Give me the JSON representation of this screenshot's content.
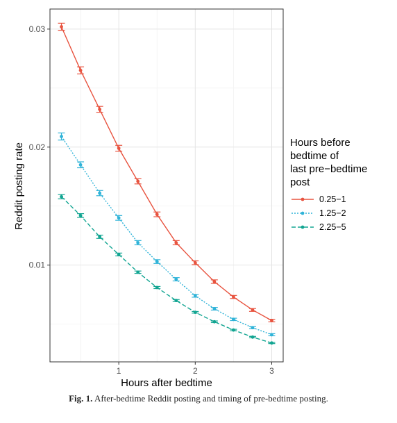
{
  "caption": {
    "label": "Fig. 1.",
    "text": "After-bedtime Reddit posting and timing of pre-bedtime posting."
  },
  "chart_data": {
    "type": "line",
    "title": "",
    "xlabel": "Hours after bedtime",
    "ylabel": "Reddit posting rate",
    "xlim": [
      0.1,
      3.15
    ],
    "ylim": [
      0.0018,
      0.0317
    ],
    "x_ticks": [
      1,
      2,
      3
    ],
    "x_tick_labels": [
      "1",
      "2",
      "3"
    ],
    "y_ticks": [
      0.01,
      0.02,
      0.03
    ],
    "y_tick_labels": [
      "0.01",
      "0.02",
      "0.03"
    ],
    "grid": true,
    "legend": {
      "title_lines": [
        "Hours before",
        "bedtime of",
        "last pre−bedtime",
        "post"
      ],
      "placement": "right"
    },
    "x": [
      0.25,
      0.5,
      0.75,
      1.0,
      1.25,
      1.5,
      1.75,
      2.0,
      2.25,
      2.5,
      2.75,
      3.0
    ],
    "series": [
      {
        "name": "0.25−1",
        "color": "#e8533f",
        "dash": "solid",
        "values": [
          0.0302,
          0.0265,
          0.0232,
          0.0199,
          0.0171,
          0.0143,
          0.0119,
          0.0102,
          0.0086,
          0.0073,
          0.0062,
          0.0053
        ],
        "err": [
          0.0003,
          0.0003,
          0.00025,
          0.00025,
          0.00022,
          0.0002,
          0.00018,
          0.00016,
          0.00015,
          0.00013,
          0.00012,
          0.00011
        ]
      },
      {
        "name": "1.25−2",
        "color": "#2fb3d8",
        "dash": "dotted",
        "values": [
          0.0209,
          0.0185,
          0.0161,
          0.014,
          0.0119,
          0.0103,
          0.0088,
          0.0074,
          0.0063,
          0.0054,
          0.0047,
          0.0041
        ],
        "err": [
          0.0003,
          0.00025,
          0.00022,
          0.0002,
          0.00018,
          0.00016,
          0.00014,
          0.00012,
          0.00011,
          0.0001,
          9e-05,
          9e-05
        ]
      },
      {
        "name": "2.25−5",
        "color": "#12a592",
        "dash": "dashed",
        "values": [
          0.0158,
          0.0142,
          0.0124,
          0.0109,
          0.0094,
          0.0081,
          0.007,
          0.006,
          0.0052,
          0.0045,
          0.0039,
          0.0034
        ],
        "err": [
          0.00018,
          0.00016,
          0.00014,
          0.00012,
          0.0001,
          9e-05,
          8e-05,
          7e-05,
          7e-05,
          6e-05,
          6e-05,
          5e-05
        ]
      }
    ]
  }
}
